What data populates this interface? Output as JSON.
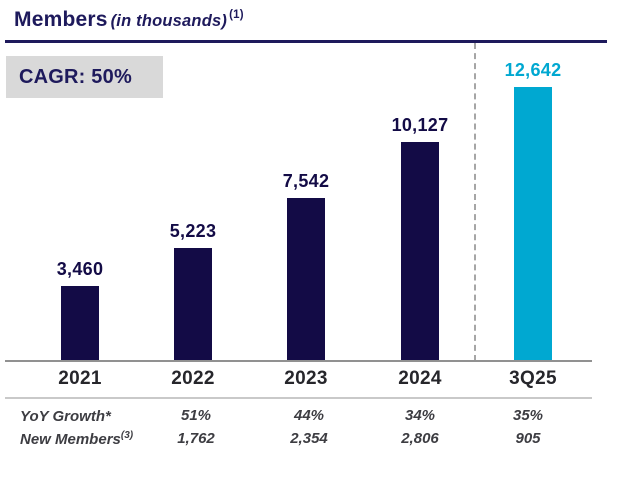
{
  "title": {
    "main": "Members",
    "qualifier": "(in thousands)",
    "footnote": "(1)"
  },
  "colors": {
    "navy": "#130b46",
    "cyan": "#00a8d1",
    "title_navy": "#1e1a5c",
    "year_label": "#26262b",
    "table_text": "#3d3d42",
    "badge_gray": "#d9d9d9",
    "axis_gray": "#919191",
    "divider_dash_gray": "#a6a6a6"
  },
  "chart_data": {
    "type": "bar",
    "title": "Members (in thousands)",
    "categories": [
      "2021",
      "2022",
      "2023",
      "2024",
      "3Q25"
    ],
    "values": [
      3460,
      5223,
      7542,
      10127,
      12642
    ],
    "value_labels": [
      "3,460",
      "5,223",
      "7,542",
      "10,127",
      "12,642"
    ],
    "bar_colors": [
      "#130b46",
      "#130b46",
      "#130b46",
      "#130b46",
      "#00a8d1"
    ],
    "ylim": [
      0,
      12642
    ],
    "grid": false,
    "annotations": {
      "cagr": "CAGR: 50%",
      "divider_note": "dashed vertical line separates 3Q25 from fiscal years"
    }
  },
  "table": {
    "rows": [
      {
        "label": "YoY Growth*",
        "sup": "",
        "values": [
          "51%",
          "44%",
          "34%",
          "35%"
        ]
      },
      {
        "label": "New Members",
        "sup": "(3)",
        "values": [
          "1,762",
          "2,354",
          "2,806",
          "905"
        ]
      }
    ]
  }
}
